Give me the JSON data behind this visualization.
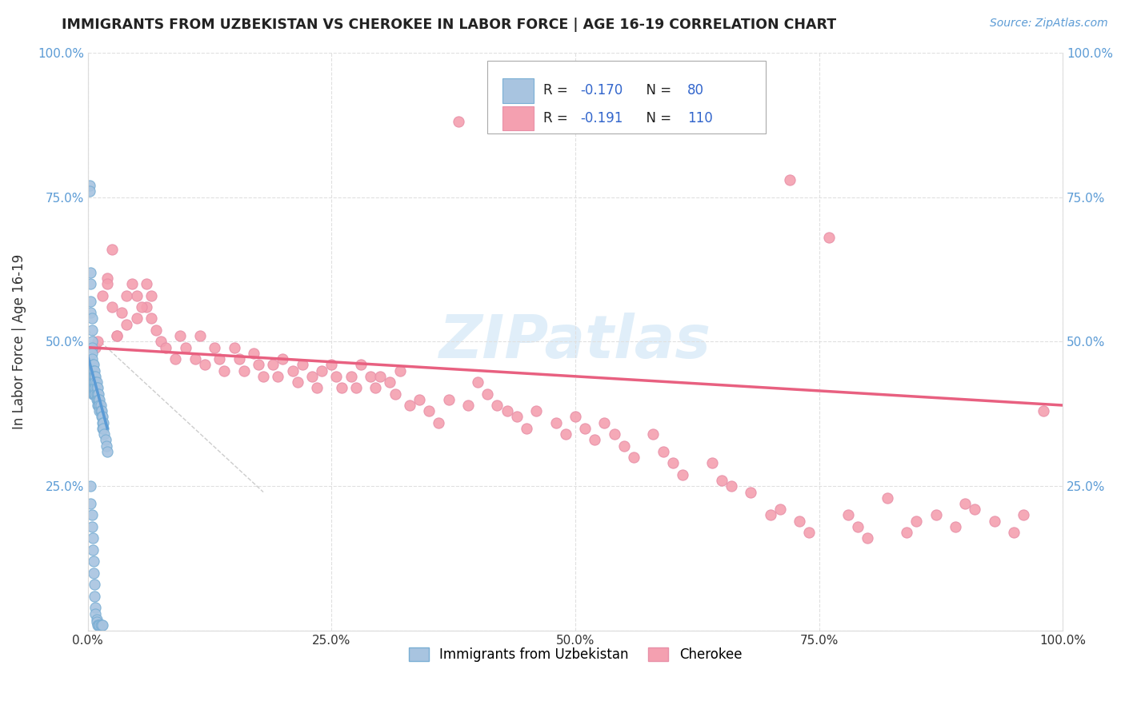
{
  "title": "IMMIGRANTS FROM UZBEKISTAN VS CHEROKEE IN LABOR FORCE | AGE 16-19 CORRELATION CHART",
  "source": "Source: ZipAtlas.com",
  "ylabel": "In Labor Force | Age 16-19",
  "xlim": [
    0.0,
    1.0
  ],
  "ylim": [
    0.0,
    1.0
  ],
  "xtick_vals": [
    0.0,
    0.25,
    0.5,
    0.75,
    1.0
  ],
  "ytick_vals": [
    0.0,
    0.25,
    0.5,
    0.75,
    1.0
  ],
  "legend_r1_prefix": "R = ",
  "legend_r1_val": "-0.170",
  "legend_n1_prefix": "N = ",
  "legend_n1_val": "80",
  "legend_r2_prefix": "R = ",
  "legend_r2_val": "-0.191",
  "legend_n2_prefix": "N = ",
  "legend_n2_val": "110",
  "color_uzbekistan": "#a8c4e0",
  "color_uzbekistan_edge": "#7aafd4",
  "color_cherokee": "#f4a0b0",
  "color_cherokee_edge": "#e890a8",
  "color_uzbekistan_line": "#5b9bd5",
  "color_cherokee_line": "#e86080",
  "color_dashed": "#c0c0c0",
  "background_color": "#ffffff",
  "grid_color": "#e0e0e0",
  "watermark": "ZIPatlas",
  "title_color": "#222222",
  "source_color": "#5b9bd5",
  "axis_label_color": "#333333",
  "tick_color_y": "#5b9bd5",
  "tick_color_x": "#333333",
  "uzbekistan_x": [
    0.002,
    0.002,
    0.003,
    0.003,
    0.003,
    0.003,
    0.004,
    0.004,
    0.004,
    0.004,
    0.004,
    0.004,
    0.005,
    0.005,
    0.005,
    0.005,
    0.005,
    0.005,
    0.006,
    0.006,
    0.006,
    0.006,
    0.006,
    0.006,
    0.007,
    0.007,
    0.007,
    0.007,
    0.007,
    0.008,
    0.008,
    0.008,
    0.008,
    0.009,
    0.009,
    0.009,
    0.009,
    0.01,
    0.01,
    0.01,
    0.01,
    0.011,
    0.011,
    0.011,
    0.012,
    0.012,
    0.012,
    0.013,
    0.013,
    0.014,
    0.014,
    0.015,
    0.015,
    0.015,
    0.016,
    0.016,
    0.017,
    0.018,
    0.019,
    0.02,
    0.003,
    0.003,
    0.004,
    0.004,
    0.005,
    0.005,
    0.006,
    0.006,
    0.007,
    0.007,
    0.008,
    0.008,
    0.009,
    0.009,
    0.01,
    0.011,
    0.012,
    0.013,
    0.014,
    0.015
  ],
  "uzbekistan_y": [
    0.77,
    0.76,
    0.62,
    0.6,
    0.57,
    0.55,
    0.54,
    0.52,
    0.5,
    0.49,
    0.48,
    0.47,
    0.46,
    0.45,
    0.44,
    0.43,
    0.42,
    0.41,
    0.46,
    0.45,
    0.44,
    0.43,
    0.42,
    0.41,
    0.45,
    0.44,
    0.43,
    0.42,
    0.41,
    0.44,
    0.43,
    0.42,
    0.41,
    0.43,
    0.42,
    0.41,
    0.4,
    0.42,
    0.41,
    0.4,
    0.39,
    0.41,
    0.4,
    0.39,
    0.4,
    0.39,
    0.38,
    0.39,
    0.38,
    0.38,
    0.37,
    0.37,
    0.36,
    0.35,
    0.36,
    0.35,
    0.34,
    0.33,
    0.32,
    0.31,
    0.25,
    0.22,
    0.2,
    0.18,
    0.16,
    0.14,
    0.12,
    0.1,
    0.08,
    0.06,
    0.04,
    0.03,
    0.02,
    0.015,
    0.01,
    0.01,
    0.01,
    0.01,
    0.01,
    0.01
  ],
  "cherokee_x": [
    0.008,
    0.015,
    0.02,
    0.025,
    0.03,
    0.04,
    0.045,
    0.05,
    0.06,
    0.065,
    0.07,
    0.075,
    0.08,
    0.09,
    0.095,
    0.1,
    0.11,
    0.115,
    0.12,
    0.13,
    0.135,
    0.14,
    0.15,
    0.155,
    0.16,
    0.17,
    0.175,
    0.18,
    0.19,
    0.195,
    0.2,
    0.21,
    0.215,
    0.22,
    0.23,
    0.235,
    0.24,
    0.25,
    0.255,
    0.26,
    0.27,
    0.275,
    0.28,
    0.29,
    0.295,
    0.3,
    0.31,
    0.315,
    0.32,
    0.33,
    0.34,
    0.35,
    0.36,
    0.37,
    0.38,
    0.39,
    0.4,
    0.41,
    0.42,
    0.43,
    0.44,
    0.45,
    0.46,
    0.48,
    0.49,
    0.5,
    0.51,
    0.52,
    0.53,
    0.54,
    0.55,
    0.56,
    0.58,
    0.59,
    0.6,
    0.61,
    0.64,
    0.65,
    0.66,
    0.68,
    0.7,
    0.71,
    0.72,
    0.73,
    0.74,
    0.76,
    0.78,
    0.79,
    0.8,
    0.82,
    0.84,
    0.85,
    0.87,
    0.89,
    0.9,
    0.91,
    0.93,
    0.95,
    0.96,
    0.98,
    0.01,
    0.02,
    0.025,
    0.03,
    0.035,
    0.04,
    0.05,
    0.055,
    0.06,
    0.065
  ],
  "cherokee_y": [
    0.49,
    0.58,
    0.61,
    0.56,
    0.51,
    0.53,
    0.6,
    0.58,
    0.56,
    0.54,
    0.52,
    0.5,
    0.49,
    0.47,
    0.51,
    0.49,
    0.47,
    0.51,
    0.46,
    0.49,
    0.47,
    0.45,
    0.49,
    0.47,
    0.45,
    0.48,
    0.46,
    0.44,
    0.46,
    0.44,
    0.47,
    0.45,
    0.43,
    0.46,
    0.44,
    0.42,
    0.45,
    0.46,
    0.44,
    0.42,
    0.44,
    0.42,
    0.46,
    0.44,
    0.42,
    0.44,
    0.43,
    0.41,
    0.45,
    0.39,
    0.4,
    0.38,
    0.36,
    0.4,
    0.88,
    0.39,
    0.43,
    0.41,
    0.39,
    0.38,
    0.37,
    0.35,
    0.38,
    0.36,
    0.34,
    0.37,
    0.35,
    0.33,
    0.36,
    0.34,
    0.32,
    0.3,
    0.34,
    0.31,
    0.29,
    0.27,
    0.29,
    0.26,
    0.25,
    0.24,
    0.2,
    0.21,
    0.78,
    0.19,
    0.17,
    0.68,
    0.2,
    0.18,
    0.16,
    0.23,
    0.17,
    0.19,
    0.2,
    0.18,
    0.22,
    0.21,
    0.19,
    0.17,
    0.2,
    0.38,
    0.5,
    0.6,
    0.66,
    0.51,
    0.55,
    0.58,
    0.54,
    0.56,
    0.6,
    0.58
  ],
  "uzbek_line_x": [
    0.0,
    0.02
  ],
  "uzbek_line_y": [
    0.475,
    0.35
  ],
  "cherokee_line_x": [
    0.0,
    1.0
  ],
  "cherokee_line_y": [
    0.49,
    0.39
  ],
  "dashed_line_x": [
    0.0,
    0.18
  ],
  "dashed_line_y": [
    0.52,
    0.24
  ]
}
